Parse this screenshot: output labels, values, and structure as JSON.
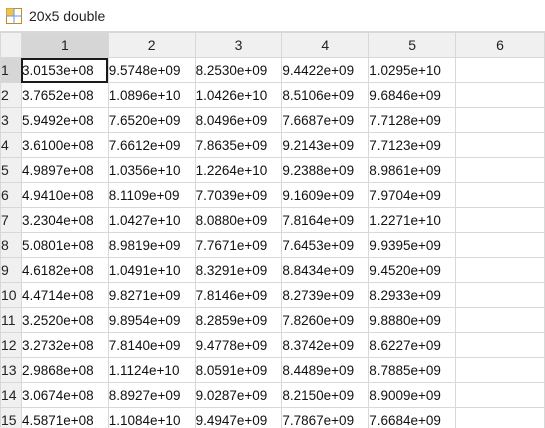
{
  "window": {
    "title": "20x5 double"
  },
  "columns": [
    "1",
    "2",
    "3",
    "4",
    "5",
    "6"
  ],
  "rows": [
    {
      "label": "1",
      "values": [
        "3.0153e+08",
        "9.5748e+09",
        "8.2530e+09",
        "9.4422e+09",
        "1.0295e+10"
      ]
    },
    {
      "label": "2",
      "values": [
        "3.7652e+08",
        "1.0896e+10",
        "1.0426e+10",
        "8.5106e+09",
        "9.6846e+09"
      ]
    },
    {
      "label": "3",
      "values": [
        "5.9492e+08",
        "7.6520e+09",
        "8.0496e+09",
        "7.6687e+09",
        "7.7128e+09"
      ]
    },
    {
      "label": "4",
      "values": [
        "3.6100e+08",
        "7.6612e+09",
        "7.8635e+09",
        "9.2143e+09",
        "7.7123e+09"
      ]
    },
    {
      "label": "5",
      "values": [
        "4.9897e+08",
        "1.0356e+10",
        "1.2264e+10",
        "9.2388e+09",
        "8.9861e+09"
      ]
    },
    {
      "label": "6",
      "values": [
        "4.9410e+08",
        "8.1109e+09",
        "7.7039e+09",
        "9.1609e+09",
        "7.9704e+09"
      ]
    },
    {
      "label": "7",
      "values": [
        "3.2304e+08",
        "1.0427e+10",
        "8.0880e+09",
        "7.8164e+09",
        "1.2271e+10"
      ]
    },
    {
      "label": "8",
      "values": [
        "5.0801e+08",
        "8.9819e+09",
        "7.7671e+09",
        "7.6453e+09",
        "9.9395e+09"
      ]
    },
    {
      "label": "9",
      "values": [
        "4.6182e+08",
        "1.0491e+10",
        "8.3291e+09",
        "8.8434e+09",
        "9.4520e+09"
      ]
    },
    {
      "label": "10",
      "values": [
        "4.4714e+08",
        "9.8271e+09",
        "7.8146e+09",
        "8.2739e+09",
        "8.2933e+09"
      ]
    },
    {
      "label": "11",
      "values": [
        "3.2520e+08",
        "9.8954e+09",
        "8.2859e+09",
        "7.8260e+09",
        "9.8880e+09"
      ]
    },
    {
      "label": "12",
      "values": [
        "3.2732e+08",
        "7.8140e+09",
        "9.4778e+09",
        "8.3742e+09",
        "8.6227e+09"
      ]
    },
    {
      "label": "13",
      "values": [
        "2.9868e+08",
        "1.1124e+10",
        "8.0591e+09",
        "8.4489e+09",
        "8.7885e+09"
      ]
    },
    {
      "label": "14",
      "values": [
        "3.0674e+08",
        "8.8927e+09",
        "9.0287e+09",
        "8.2150e+09",
        "8.9009e+09"
      ]
    },
    {
      "label": "15",
      "values": [
        "4.5871e+08",
        "1.1084e+10",
        "9.4947e+09",
        "7.7867e+09",
        "7.6684e+09"
      ]
    }
  ],
  "selection": {
    "row": 1,
    "col": 1
  },
  "colors": {
    "header_bg": "#f0f0f0",
    "header_selected_bg": "#d6d6d6",
    "grid_line": "#d8d8d8"
  }
}
